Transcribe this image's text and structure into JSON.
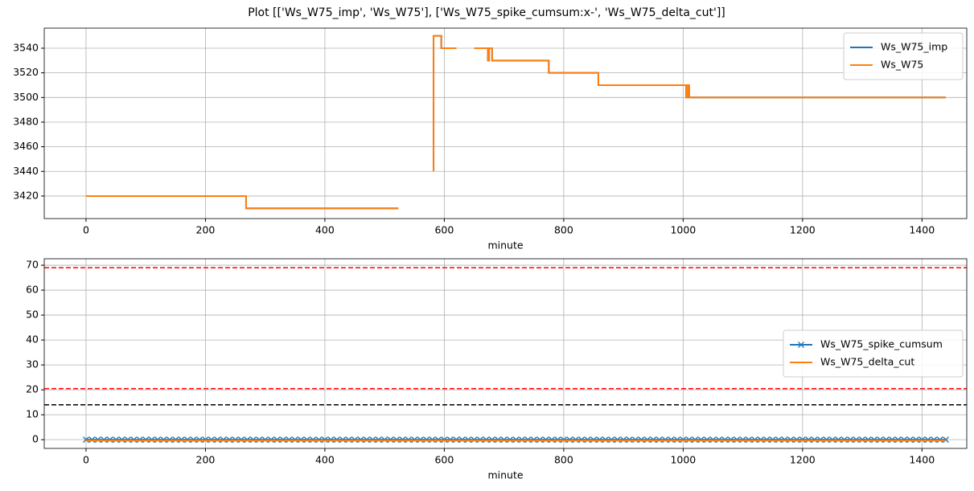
{
  "title": "Plot [['Ws_W75_imp', 'Ws_W75'], ['Ws_W75_spike_cumsum:x-', 'Ws_W75_delta_cut']]",
  "chart_data": [
    {
      "type": "line",
      "xlabel": "minute",
      "xlim": [
        -70,
        1475
      ],
      "ylim": [
        3401.7,
        3556.3
      ],
      "xticks": [
        0,
        200,
        400,
        600,
        800,
        1000,
        1200,
        1400
      ],
      "yticks": [
        3420,
        3440,
        3460,
        3480,
        3500,
        3520,
        3540
      ],
      "grid": true,
      "legend": "upper right",
      "series": [
        {
          "name": "Ws_W75_imp",
          "color": "#1f77b4",
          "x": [
            0,
            268,
            268,
            523,
            550,
            582,
            582,
            595,
            595,
            620,
            635,
            650,
            673,
            673,
            675,
            675,
            680,
            680,
            775,
            775,
            858,
            858,
            1005,
            1005,
            1008,
            1008,
            1010,
            1010,
            1440
          ],
          "values": [
            3420,
            3420,
            3410,
            3410,
            null,
            3440,
            3550,
            3550,
            3540,
            3540,
            null,
            3540,
            3540,
            3530,
            3530,
            3540,
            3540,
            3530,
            3530,
            3520,
            3520,
            3510,
            3510,
            3500,
            3500,
            3510,
            3510,
            3500,
            3500
          ]
        },
        {
          "name": "Ws_W75",
          "color": "#ff7f0e",
          "x": [
            0,
            268,
            268,
            523,
            550,
            582,
            582,
            595,
            595,
            620,
            635,
            650,
            673,
            673,
            675,
            675,
            680,
            680,
            775,
            775,
            858,
            858,
            1005,
            1005,
            1008,
            1008,
            1010,
            1010,
            1440
          ],
          "values": [
            3420,
            3420,
            3410,
            3410,
            null,
            3440,
            3550,
            3550,
            3540,
            3540,
            null,
            3540,
            3540,
            3530,
            3530,
            3540,
            3540,
            3530,
            3530,
            3520,
            3520,
            3510,
            3510,
            3500,
            3500,
            3510,
            3510,
            3500,
            3500
          ]
        }
      ]
    },
    {
      "type": "line",
      "xlabel": "minute",
      "xlim": [
        -70,
        1475
      ],
      "ylim": [
        -3.5,
        72.6
      ],
      "xticks": [
        0,
        200,
        400,
        600,
        800,
        1000,
        1200,
        1400
      ],
      "yticks": [
        0,
        10,
        20,
        30,
        40,
        50,
        60,
        70
      ],
      "grid": true,
      "legend": "center right",
      "line_style": "dashed",
      "hlines": [
        {
          "value": 69,
          "color": "#ff0000"
        },
        {
          "value": 20.5,
          "color": "#ff0000"
        },
        {
          "value": 14,
          "color": "#000000"
        }
      ],
      "series": [
        {
          "name": "Ws_W75_spike_cumsum",
          "color": "#1f77b4",
          "marker": "x",
          "x": [
            0,
            10,
            20,
            30,
            40,
            50,
            60,
            70,
            80,
            90,
            100,
            110,
            120,
            130,
            140,
            150,
            160,
            170,
            180,
            190,
            200,
            210,
            220,
            230,
            240,
            250,
            260,
            270,
            280,
            290,
            300,
            310,
            320,
            330,
            340,
            350,
            360,
            370,
            380,
            390,
            400,
            410,
            420,
            430,
            440,
            450,
            460,
            470,
            480,
            490,
            500,
            510,
            520,
            530,
            540,
            550,
            560,
            570,
            580,
            590,
            600,
            610,
            620,
            630,
            640,
            650,
            660,
            670,
            680,
            690,
            700,
            710,
            720,
            730,
            740,
            750,
            760,
            770,
            780,
            790,
            800,
            810,
            820,
            830,
            840,
            850,
            860,
            870,
            880,
            890,
            900,
            910,
            920,
            930,
            940,
            950,
            960,
            970,
            980,
            990,
            1000,
            1010,
            1020,
            1030,
            1040,
            1050,
            1060,
            1070,
            1080,
            1090,
            1100,
            1110,
            1120,
            1130,
            1140,
            1150,
            1160,
            1170,
            1180,
            1190,
            1200,
            1210,
            1220,
            1230,
            1240,
            1250,
            1260,
            1270,
            1280,
            1290,
            1300,
            1310,
            1320,
            1330,
            1340,
            1350,
            1360,
            1370,
            1380,
            1390,
            1400,
            1410,
            1420,
            1430,
            1440
          ],
          "values": [
            0,
            0,
            0,
            0,
            0,
            0,
            0,
            0,
            0,
            0,
            0,
            0,
            0,
            0,
            0,
            0,
            0,
            0,
            0,
            0,
            0,
            0,
            0,
            0,
            0,
            0,
            0,
            0,
            0,
            0,
            0,
            0,
            0,
            0,
            0,
            0,
            0,
            0,
            0,
            0,
            0,
            0,
            0,
            0,
            0,
            0,
            0,
            0,
            0,
            0,
            0,
            0,
            0,
            0,
            0,
            0,
            0,
            0,
            0,
            0,
            0,
            0,
            0,
            0,
            0,
            0,
            0,
            0,
            0,
            0,
            0,
            0,
            0,
            0,
            0,
            0,
            0,
            0,
            0,
            0,
            0,
            0,
            0,
            0,
            0,
            0,
            0,
            0,
            0,
            0,
            0,
            0,
            0,
            0,
            0,
            0,
            0,
            0,
            0,
            0,
            0,
            0,
            0,
            0,
            0,
            0,
            0,
            0,
            0,
            0,
            0,
            0,
            0,
            0,
            0,
            0,
            0,
            0,
            0,
            0,
            0,
            0,
            0,
            0,
            0,
            0,
            0,
            0,
            0,
            0,
            0,
            0,
            0,
            0,
            0,
            0,
            0,
            0,
            0,
            0,
            0,
            0,
            0,
            0,
            0
          ]
        },
        {
          "name": "Ws_W75_delta_cut",
          "color": "#ff7f0e",
          "x": [
            0,
            1440
          ],
          "values": [
            -0.3,
            -0.3
          ]
        }
      ]
    }
  ]
}
